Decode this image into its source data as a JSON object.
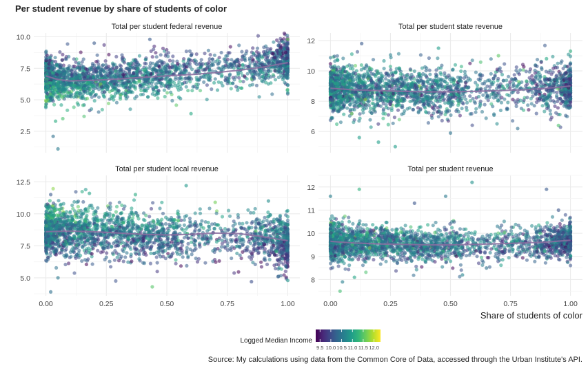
{
  "chart_data": {
    "type": "scatter",
    "title": "Per student revenue by share of students of color",
    "xlabel": "Share of students of color",
    "ylabel": "",
    "x_ticks": [
      "0.00",
      "0.25",
      "0.50",
      "0.75",
      "1.00"
    ],
    "xlim": [
      -0.05,
      1.05
    ],
    "legend": {
      "title": "Logged Median Income",
      "labels": [
        "9.5",
        "10.0",
        "10.5",
        "11.0",
        "11.5",
        "12.0"
      ],
      "range": [
        9.3,
        12.3
      ],
      "placement": "bottom"
    },
    "colors": {
      "gradient": [
        "#440154",
        "#482878",
        "#3e4989",
        "#31688e",
        "#26828e",
        "#1f9e89",
        "#35b779",
        "#6ece58",
        "#b5de2b",
        "#fde725"
      ],
      "trend": "#8a6fa0",
      "grid": "#ebebeb",
      "text": "#222222"
    },
    "panels": [
      {
        "title": "Total per student federal revenue",
        "ylim": [
          0.8,
          10.3
        ],
        "y_ticks": [
          2.5,
          5.0,
          7.5,
          10.0
        ],
        "trend": [
          [
            0.0,
            6.9
          ],
          [
            0.05,
            6.6
          ],
          [
            0.1,
            6.5
          ],
          [
            0.2,
            6.55
          ],
          [
            0.3,
            6.65
          ],
          [
            0.4,
            6.78
          ],
          [
            0.5,
            6.9
          ],
          [
            0.6,
            7.0
          ],
          [
            0.7,
            7.15
          ],
          [
            0.8,
            7.35
          ],
          [
            0.9,
            7.6
          ],
          [
            1.0,
            7.95
          ]
        ],
        "spread": 0.7,
        "outliers": [
          [
            0.05,
            1.1
          ],
          [
            0.03,
            2.1
          ],
          [
            0.04,
            3.3
          ],
          [
            0.0,
            4.4
          ],
          [
            0.07,
            3.5
          ],
          [
            0.6,
            3.9
          ],
          [
            0.55,
            5.2
          ],
          [
            1.0,
            9.8
          ],
          [
            0.98,
            9.6
          ],
          [
            0.2,
            9.5
          ],
          [
            0.43,
            9.8
          ],
          [
            0.03,
            4.9
          ]
        ]
      },
      {
        "title": "Total per student state revenue",
        "ylim": [
          4.6,
          12.5
        ],
        "y_ticks": [
          6,
          8,
          10,
          12
        ],
        "trend": [
          [
            0.0,
            8.85
          ],
          [
            0.1,
            8.75
          ],
          [
            0.2,
            8.7
          ],
          [
            0.3,
            8.65
          ],
          [
            0.4,
            8.62
          ],
          [
            0.5,
            8.62
          ],
          [
            0.6,
            8.65
          ],
          [
            0.7,
            8.7
          ],
          [
            0.8,
            8.75
          ],
          [
            0.9,
            8.85
          ],
          [
            1.0,
            9.0
          ]
        ],
        "spread": 0.75,
        "outliers": [
          [
            0.13,
            11.8
          ],
          [
            0.12,
            5.6
          ],
          [
            0.2,
            5.3
          ],
          [
            0.27,
            5.0
          ],
          [
            0.45,
            11.5
          ],
          [
            0.7,
            11.0
          ],
          [
            0.78,
            6.2
          ],
          [
            0.9,
            10.8
          ],
          [
            1.0,
            11.3
          ],
          [
            0.95,
            6.4
          ],
          [
            0.5,
            5.9
          ],
          [
            0.03,
            10.7
          ]
        ]
      },
      {
        "title": "Total per student local revenue",
        "ylim": [
          3.6,
          13.0
        ],
        "y_ticks": [
          5.0,
          7.5,
          10.0,
          12.5
        ],
        "trend": [
          [
            0.0,
            8.6
          ],
          [
            0.1,
            8.65
          ],
          [
            0.2,
            8.6
          ],
          [
            0.3,
            8.5
          ],
          [
            0.4,
            8.4
          ],
          [
            0.5,
            8.35
          ],
          [
            0.6,
            8.4
          ],
          [
            0.7,
            8.5
          ],
          [
            0.8,
            8.45
          ],
          [
            0.9,
            8.2
          ],
          [
            1.0,
            7.9
          ]
        ],
        "spread": 0.9,
        "outliers": [
          [
            0.02,
            3.9
          ],
          [
            0.05,
            5.0
          ],
          [
            0.44,
            4.3
          ],
          [
            0.58,
            12.2
          ],
          [
            0.96,
            5.1
          ],
          [
            1.0,
            4.8
          ],
          [
            0.92,
            11.0
          ],
          [
            0.37,
            11.5
          ],
          [
            0.18,
            11.6
          ],
          [
            0.02,
            11.5
          ],
          [
            0.85,
            4.7
          ],
          [
            0.7,
            10.9
          ]
        ]
      },
      {
        "title": "Total per student revenue",
        "ylim": [
          7.3,
          12.5
        ],
        "y_ticks": [
          8,
          9,
          10,
          11,
          12
        ],
        "trend": [
          [
            0.0,
            9.65
          ],
          [
            0.1,
            9.58
          ],
          [
            0.2,
            9.54
          ],
          [
            0.3,
            9.52
          ],
          [
            0.4,
            9.5
          ],
          [
            0.5,
            9.5
          ],
          [
            0.6,
            9.52
          ],
          [
            0.7,
            9.55
          ],
          [
            0.8,
            9.58
          ],
          [
            0.9,
            9.62
          ],
          [
            1.0,
            9.7
          ]
        ],
        "spread": 0.38,
        "outliers": [
          [
            0.04,
            7.5
          ],
          [
            0.05,
            7.9
          ],
          [
            0.1,
            8.1
          ],
          [
            0.59,
            12.2
          ],
          [
            0.9,
            11.9
          ],
          [
            0.48,
            11.6
          ],
          [
            0.12,
            11.9
          ],
          [
            0.0,
            11.6
          ],
          [
            0.35,
            11.3
          ],
          [
            0.65,
            8.5
          ],
          [
            0.55,
            8.2
          ],
          [
            0.95,
            11.0
          ]
        ]
      }
    ]
  },
  "caption": "Source: My calculations using data from the Common Core of Data, accessed through the Urban Institute's API."
}
